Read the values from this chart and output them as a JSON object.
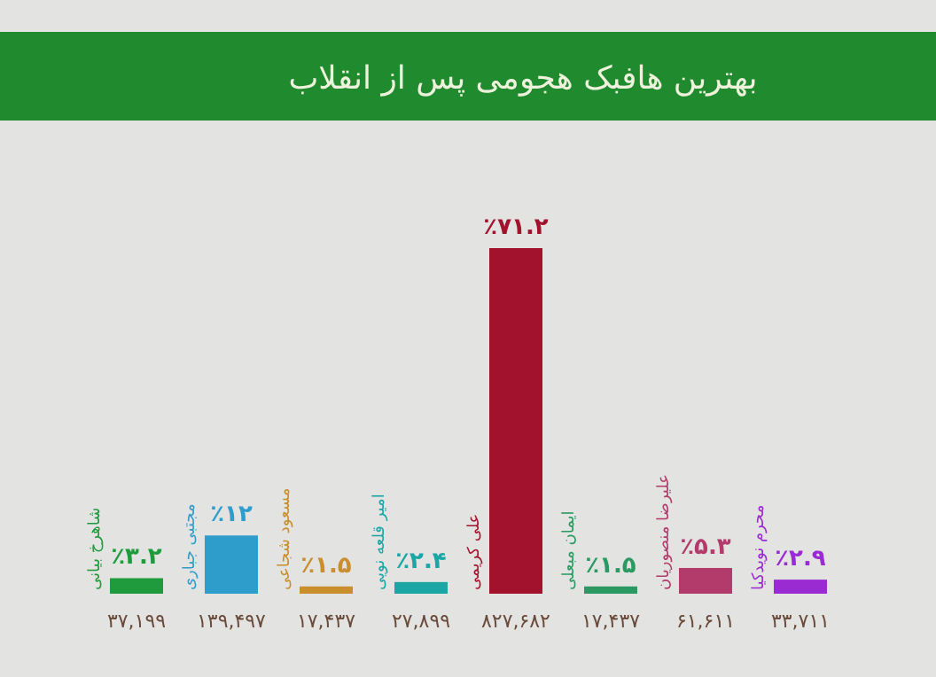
{
  "chart_data": {
    "type": "bar",
    "title": "بهترین هافبک هجومی پس از انقلاب",
    "categories": [
      "شاهرخ بیانی",
      "مجتبی جباری",
      "مسعود شجاعی",
      "امیر قلعه نویی",
      "علی کریمی",
      "ایمان مبعلی",
      "علیرضا منصوریان",
      "محرم نویدکیا"
    ],
    "values": [
      3.2,
      12,
      1.5,
      2.4,
      71.2,
      1.5,
      5.3,
      2.9
    ],
    "value_labels": [
      "٪۳.۲",
      "٪۱۲",
      "٪۱.۵",
      "٪۲.۴",
      "٪۷۱.۲",
      "٪۱.۵",
      "٪۵.۳",
      "٪۲.۹"
    ],
    "colors": [
      "#1f9a3c",
      "#2f9dcc",
      "#c88f2c",
      "#1ba6a6",
      "#a3122c",
      "#2a9a62",
      "#b23b6c",
      "#9a2ad2"
    ],
    "annotations": [
      "۳۷,۱۹۹",
      "۱۳۹,۴۹۷",
      "۱۷,۴۳۷",
      "۲۷,۸۹۹",
      "۸۲۷,۶۸۲",
      "۱۷,۴۳۷",
      "۶۱,۶۱۱",
      "۳۳,۷۱۱"
    ]
  }
}
